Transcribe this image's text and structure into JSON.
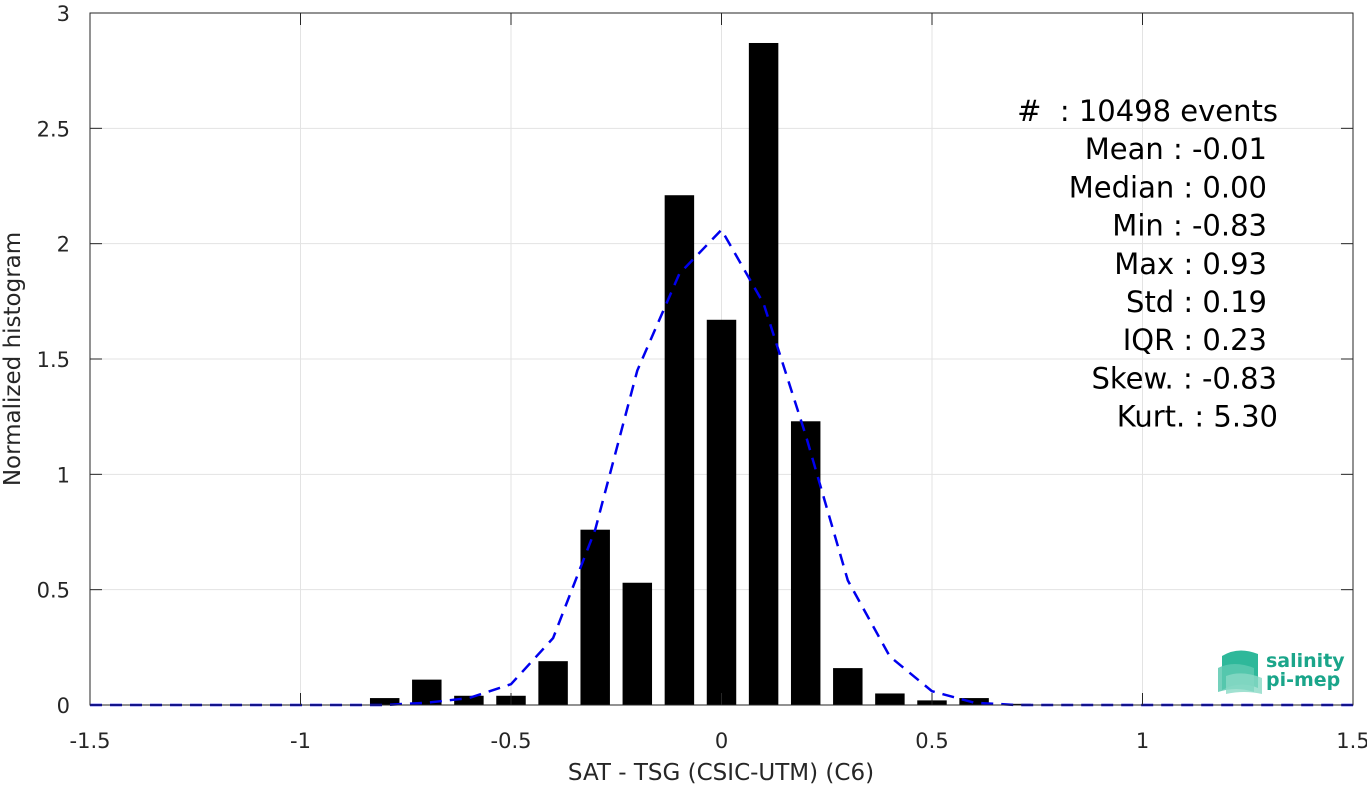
{
  "chart_data": {
    "type": "bar",
    "xlabel": "SAT - TSG (CSIC-UTM) (C6)",
    "ylabel": "Normalized histogram",
    "xlim": [
      -1.5,
      1.5
    ],
    "ylim": [
      0,
      3
    ],
    "xticks": [
      -1.5,
      -1,
      -0.5,
      0,
      0.5,
      1,
      1.5
    ],
    "xtick_labels": [
      "-1.5",
      "-1",
      "-0.5",
      "0",
      "0.5",
      "1",
      "1.5"
    ],
    "yticks": [
      0,
      0.5,
      1,
      1.5,
      2,
      2.5,
      3
    ],
    "ytick_labels": [
      "0",
      "0.5",
      "1",
      "1.5",
      "2",
      "2.5",
      "3"
    ],
    "grid": true,
    "bar_width": 0.07,
    "bar_color": "#000000",
    "series": [
      {
        "type": "bar",
        "x": [
          -0.8,
          -0.7,
          -0.6,
          -0.5,
          -0.4,
          -0.3,
          -0.2,
          -0.1,
          0.0,
          0.1,
          0.2,
          0.3,
          0.4,
          0.5,
          0.6,
          0.7
        ],
        "values": [
          0.03,
          0.11,
          0.04,
          0.04,
          0.19,
          0.76,
          0.53,
          2.21,
          1.67,
          2.87,
          1.23,
          0.16,
          0.05,
          0.02,
          0.03,
          0.005
        ]
      },
      {
        "type": "line",
        "style": "dashed",
        "color": "#0000ee",
        "x": [
          -1.5,
          -1.4,
          -1.3,
          -1.2,
          -1.1,
          -1.0,
          -0.9,
          -0.8,
          -0.7,
          -0.6,
          -0.5,
          -0.4,
          -0.3,
          -0.2,
          -0.1,
          0.0,
          0.1,
          0.2,
          0.3,
          0.4,
          0.5,
          0.6,
          0.7,
          0.8,
          0.9,
          1.0,
          1.1,
          1.2,
          1.3,
          1.4,
          1.5
        ],
        "y": [
          0,
          0,
          0,
          0,
          0,
          0,
          0,
          0,
          0.01,
          0.03,
          0.09,
          0.29,
          0.76,
          1.45,
          1.87,
          2.06,
          1.74,
          1.17,
          0.54,
          0.21,
          0.06,
          0.01,
          0,
          0,
          0,
          0,
          0,
          0,
          0,
          0,
          0
        ]
      }
    ],
    "annotations": [
      "#  : 10498 events",
      "Mean : -0.01",
      "Median : 0.00",
      "Min : -0.83",
      "Max : 0.93",
      "Std : 0.19",
      "IQR : 0.23",
      "Skew. : -0.83",
      "Kurt. : 5.30"
    ]
  },
  "logo": {
    "line1": "salinity",
    "line2": "pi-mep",
    "color": "#1aa58a"
  }
}
